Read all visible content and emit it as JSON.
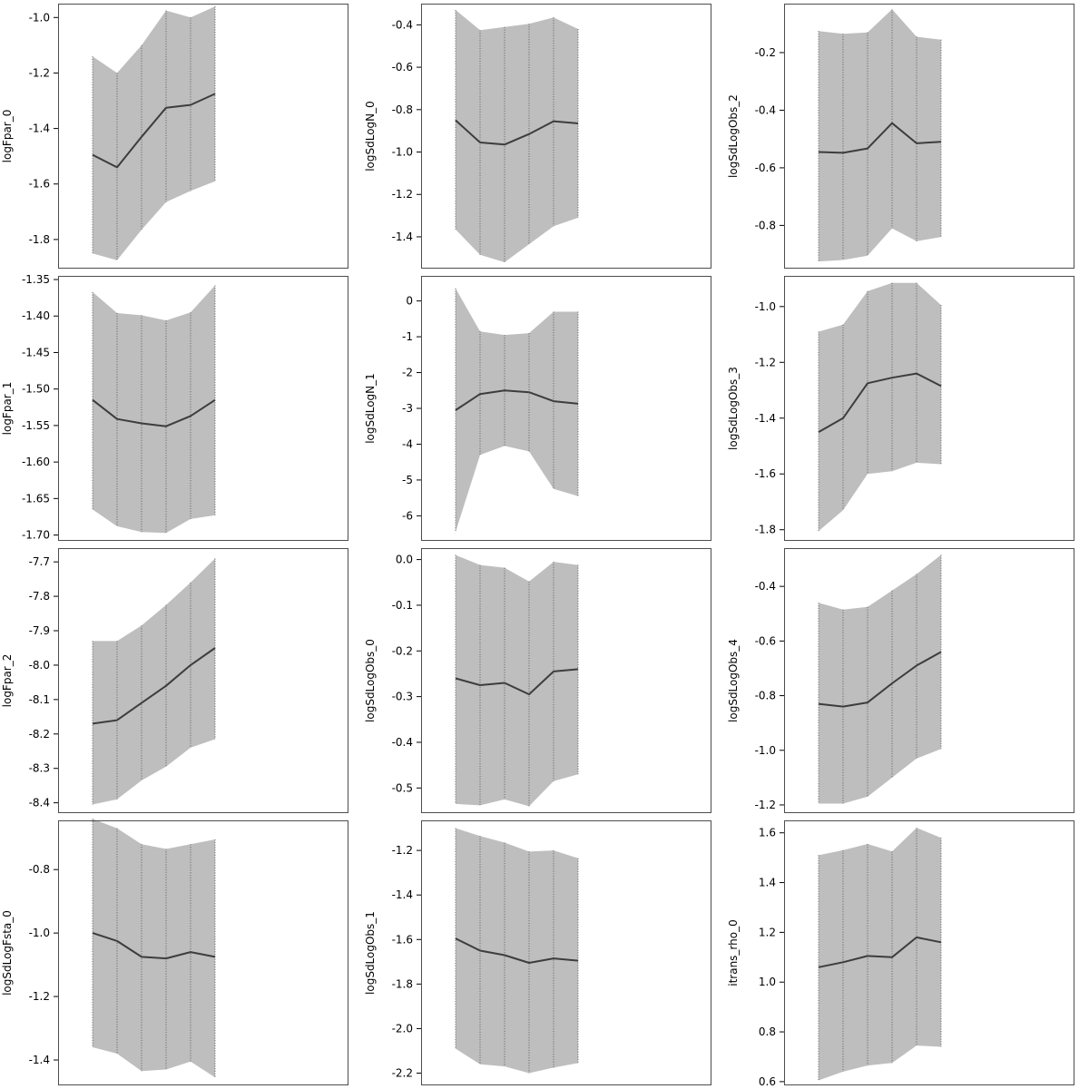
{
  "chart_data": [
    {
      "type": "area",
      "ylabel": "logFpar_0",
      "ylim": [
        -1.905,
        -0.95
      ],
      "yticks": [
        -1.0,
        -1.2,
        -1.4,
        -1.6,
        -1.8
      ],
      "tick_decimals": 1,
      "x": [
        1,
        2,
        3,
        4,
        5,
        6
      ],
      "series": [
        {
          "mean": [
            -1.495,
            -1.54,
            -1.43,
            -1.325,
            -1.315,
            -1.275
          ],
          "lower": [
            -1.85,
            -1.875,
            -1.765,
            -1.665,
            -1.625,
            -1.59
          ],
          "upper": [
            -1.14,
            -1.2,
            -1.1,
            -0.975,
            -1.0,
            -0.96
          ]
        }
      ]
    },
    {
      "type": "area",
      "ylabel": "logSdLogN_0",
      "ylim": [
        -1.55,
        -0.3
      ],
      "yticks": [
        -0.4,
        -0.6,
        -0.8,
        -1.0,
        -1.2,
        -1.4
      ],
      "tick_decimals": 1,
      "x": [
        1,
        2,
        3,
        4,
        5,
        6
      ],
      "series": [
        {
          "mean": [
            -0.85,
            -0.955,
            -0.965,
            -0.915,
            -0.855,
            -0.865
          ],
          "lower": [
            -1.365,
            -1.485,
            -1.52,
            -1.435,
            -1.35,
            -1.31
          ],
          "upper": [
            -0.33,
            -0.425,
            -0.41,
            -0.395,
            -0.365,
            -0.42
          ]
        }
      ]
    },
    {
      "type": "area",
      "ylabel": "logSdLogObs_2",
      "ylim": [
        -0.95,
        -0.03
      ],
      "yticks": [
        -0.2,
        -0.4,
        -0.6,
        -0.8
      ],
      "tick_decimals": 1,
      "x": [
        1,
        2,
        3,
        4,
        5,
        6
      ],
      "series": [
        {
          "mean": [
            -0.545,
            -0.548,
            -0.533,
            -0.445,
            -0.515,
            -0.51
          ],
          "lower": [
            -0.925,
            -0.92,
            -0.905,
            -0.81,
            -0.855,
            -0.84
          ],
          "upper": [
            -0.125,
            -0.135,
            -0.13,
            -0.05,
            -0.145,
            -0.155
          ]
        }
      ]
    },
    {
      "type": "area",
      "ylabel": "logFpar_1",
      "ylim": [
        -1.708,
        -1.345
      ],
      "yticks": [
        -1.35,
        -1.4,
        -1.45,
        -1.5,
        -1.55,
        -1.6,
        -1.65,
        -1.7
      ],
      "tick_decimals": 2,
      "x": [
        1,
        2,
        3,
        4,
        5,
        6
      ],
      "series": [
        {
          "mean": [
            -1.515,
            -1.541,
            -1.547,
            -1.551,
            -1.537,
            -1.515
          ],
          "lower": [
            -1.665,
            -1.688,
            -1.696,
            -1.697,
            -1.678,
            -1.673
          ],
          "upper": [
            -1.367,
            -1.396,
            -1.399,
            -1.406,
            -1.395,
            -1.358
          ]
        }
      ]
    },
    {
      "type": "area",
      "ylabel": "logSdLogN_1",
      "ylim": [
        -6.7,
        0.7
      ],
      "yticks": [
        0,
        -1,
        -2,
        -3,
        -4,
        -5,
        -6
      ],
      "tick_decimals": 0,
      "x": [
        1,
        2,
        3,
        4,
        5,
        6
      ],
      "series": [
        {
          "mean": [
            -3.05,
            -2.6,
            -2.5,
            -2.55,
            -2.8,
            -2.87
          ],
          "lower": [
            -6.45,
            -4.3,
            -4.05,
            -4.2,
            -5.25,
            -5.45
          ],
          "upper": [
            0.35,
            -0.85,
            -0.95,
            -0.9,
            -0.3,
            -0.3
          ]
        }
      ]
    },
    {
      "type": "area",
      "ylabel": "logSdLogObs_3",
      "ylim": [
        -1.84,
        -0.89
      ],
      "yticks": [
        -1.0,
        -1.2,
        -1.4,
        -1.6,
        -1.8
      ],
      "tick_decimals": 1,
      "x": [
        1,
        2,
        3,
        4,
        5,
        6
      ],
      "series": [
        {
          "mean": [
            -1.45,
            -1.4,
            -1.275,
            -1.255,
            -1.24,
            -1.285
          ],
          "lower": [
            -1.805,
            -1.73,
            -1.6,
            -1.59,
            -1.56,
            -1.565
          ],
          "upper": [
            -1.09,
            -1.065,
            -0.945,
            -0.915,
            -0.915,
            -0.995
          ]
        }
      ]
    },
    {
      "type": "area",
      "ylabel": "logFpar_2",
      "ylim": [
        -8.43,
        -7.66
      ],
      "yticks": [
        -7.7,
        -7.8,
        -7.9,
        -8.0,
        -8.1,
        -8.2,
        -8.3,
        -8.4
      ],
      "tick_decimals": 1,
      "x": [
        1,
        2,
        3,
        4,
        5,
        6
      ],
      "series": [
        {
          "mean": [
            -8.17,
            -8.16,
            -8.11,
            -8.06,
            -8.0,
            -7.95
          ],
          "lower": [
            -8.405,
            -8.39,
            -8.335,
            -8.295,
            -8.24,
            -8.215
          ],
          "upper": [
            -7.93,
            -7.93,
            -7.885,
            -7.825,
            -7.76,
            -7.69
          ]
        }
      ]
    },
    {
      "type": "area",
      "ylabel": "logSdLogObs_0",
      "ylim": [
        -0.555,
        0.025
      ],
      "yticks": [
        0.0,
        -0.1,
        -0.2,
        -0.3,
        -0.4,
        -0.5
      ],
      "tick_decimals": 1,
      "x": [
        1,
        2,
        3,
        4,
        5,
        6
      ],
      "series": [
        {
          "mean": [
            -0.26,
            -0.275,
            -0.27,
            -0.295,
            -0.245,
            -0.24
          ],
          "lower": [
            -0.535,
            -0.538,
            -0.525,
            -0.54,
            -0.485,
            -0.47
          ],
          "upper": [
            0.01,
            -0.012,
            -0.018,
            -0.048,
            -0.005,
            -0.012
          ]
        }
      ]
    },
    {
      "type": "area",
      "ylabel": "logSdLogObs_4",
      "ylim": [
        -1.23,
        -0.26
      ],
      "yticks": [
        -0.4,
        -0.6,
        -0.8,
        -1.0,
        -1.2
      ],
      "tick_decimals": 1,
      "x": [
        1,
        2,
        3,
        4,
        5,
        6
      ],
      "series": [
        {
          "mean": [
            -0.83,
            -0.84,
            -0.825,
            -0.755,
            -0.69,
            -0.64
          ],
          "lower": [
            -1.195,
            -1.195,
            -1.17,
            -1.1,
            -1.03,
            -0.995
          ],
          "upper": [
            -0.46,
            -0.485,
            -0.475,
            -0.415,
            -0.355,
            -0.285
          ]
        }
      ]
    },
    {
      "type": "area",
      "ylabel": "logSdLogFsta_0",
      "ylim": [
        -1.48,
        -0.645
      ],
      "yticks": [
        -0.8,
        -1.0,
        -1.2,
        -1.4
      ],
      "tick_decimals": 1,
      "x": [
        1,
        2,
        3,
        4,
        5,
        6
      ],
      "series": [
        {
          "mean": [
            -1.0,
            -1.025,
            -1.075,
            -1.08,
            -1.06,
            -1.075
          ],
          "lower": [
            -1.36,
            -1.38,
            -1.435,
            -1.43,
            -1.405,
            -1.455
          ],
          "upper": [
            -0.64,
            -0.67,
            -0.72,
            -0.735,
            -0.72,
            -0.705
          ]
        }
      ]
    },
    {
      "type": "area",
      "ylabel": "logSdLogObs_1",
      "ylim": [
        -2.255,
        -1.065
      ],
      "yticks": [
        -1.2,
        -1.4,
        -1.6,
        -1.8,
        -2.0,
        -2.2
      ],
      "tick_decimals": 1,
      "x": [
        1,
        2,
        3,
        4,
        5,
        6
      ],
      "series": [
        {
          "mean": [
            -1.595,
            -1.65,
            -1.67,
            -1.705,
            -1.685,
            -1.695
          ],
          "lower": [
            -2.09,
            -2.16,
            -2.17,
            -2.2,
            -2.175,
            -2.155
          ],
          "upper": [
            -1.1,
            -1.135,
            -1.165,
            -1.205,
            -1.2,
            -1.235
          ]
        }
      ]
    },
    {
      "type": "area",
      "ylabel": "itrans_rho_0",
      "ylim": [
        0.585,
        1.65
      ],
      "yticks": [
        0.6,
        0.8,
        1.0,
        1.2,
        1.4,
        1.6
      ],
      "tick_decimals": 1,
      "x": [
        1,
        2,
        3,
        4,
        5,
        6
      ],
      "series": [
        {
          "mean": [
            1.06,
            1.08,
            1.105,
            1.1,
            1.18,
            1.16
          ],
          "lower": [
            0.605,
            0.64,
            0.665,
            0.675,
            0.745,
            0.74
          ],
          "upper": [
            1.51,
            1.53,
            1.555,
            1.525,
            1.62,
            1.58
          ]
        }
      ]
    }
  ],
  "colors": {
    "band_fill": "#bebebe",
    "mean_line": "#3d3d3d",
    "drop_line": "#555555",
    "frame": "#4d4d4d"
  }
}
